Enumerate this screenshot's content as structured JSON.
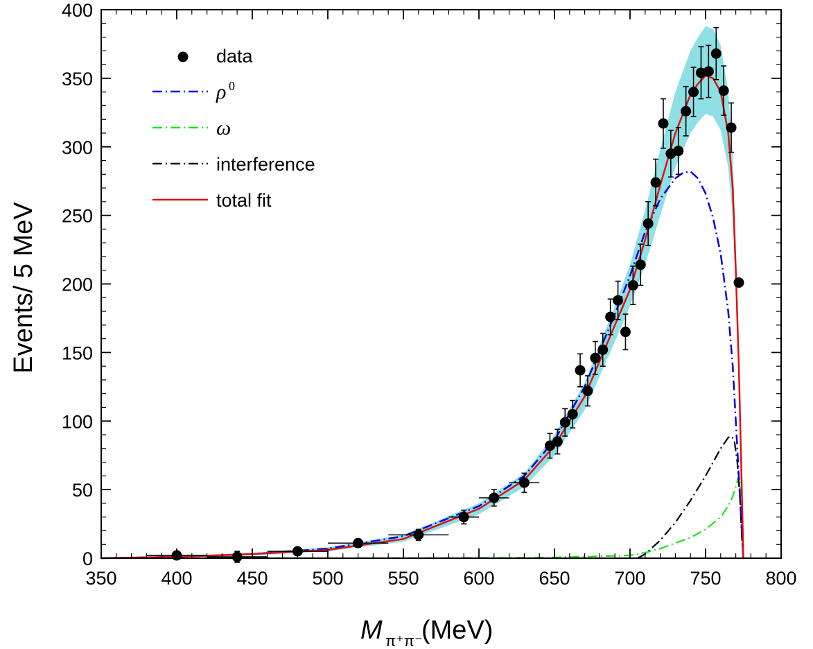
{
  "chart_data": {
    "type": "scatter",
    "xlabel": "M",
    "xlabel_sub": "π⁺π⁻",
    "xlabel_unit": "(MeV)",
    "ylabel": "Events/ 5 MeV",
    "xlim": [
      350,
      800
    ],
    "ylim": [
      0,
      400
    ],
    "xticks": [
      350,
      400,
      450,
      500,
      550,
      600,
      650,
      700,
      750,
      800
    ],
    "yticks": [
      0,
      50,
      100,
      150,
      200,
      250,
      300,
      350,
      400
    ],
    "grid": false,
    "legend_position": "top-left",
    "legend": [
      {
        "key": "data",
        "label": "data",
        "marker": "dot"
      },
      {
        "key": "rho",
        "label": "ρ",
        "sup": "0",
        "style": "dash-dot",
        "color": "#0000e6"
      },
      {
        "key": "omega",
        "label": "ω",
        "style": "dash-dot",
        "color": "#22e022"
      },
      {
        "key": "interference",
        "label": "interference",
        "style": "dash-dot",
        "color": "#000000"
      },
      {
        "key": "total",
        "label": "total fit",
        "style": "solid",
        "color": "#e01010"
      }
    ],
    "band_color": "#8fe0e4",
    "data_points": [
      {
        "x": 400,
        "y": 2,
        "xerr": 20,
        "yerr": 1.5
      },
      {
        "x": 440,
        "y": 1,
        "xerr": 20,
        "yerr": 4
      },
      {
        "x": 480,
        "y": 5,
        "xerr": 20,
        "yerr": 2
      },
      {
        "x": 520,
        "y": 11,
        "xerr": 20,
        "yerr": 3
      },
      {
        "x": 560,
        "y": 17,
        "xerr": 20,
        "yerr": 4
      },
      {
        "x": 590,
        "y": 30,
        "xerr": 10,
        "yerr": 5
      },
      {
        "x": 610,
        "y": 44,
        "xerr": 10,
        "yerr": 6
      },
      {
        "x": 630,
        "y": 55,
        "xerr": 10,
        "yerr": 7
      },
      {
        "x": 647,
        "y": 82,
        "xerr": 2.5,
        "yerr": 9
      },
      {
        "x": 652,
        "y": 85,
        "xerr": 2.5,
        "yerr": 9
      },
      {
        "x": 657,
        "y": 99,
        "xerr": 2.5,
        "yerr": 10
      },
      {
        "x": 662,
        "y": 105,
        "xerr": 2.5,
        "yerr": 10
      },
      {
        "x": 667,
        "y": 137,
        "xerr": 2.5,
        "yerr": 12
      },
      {
        "x": 672,
        "y": 122,
        "xerr": 2.5,
        "yerr": 11
      },
      {
        "x": 677,
        "y": 146,
        "xerr": 2.5,
        "yerr": 12
      },
      {
        "x": 682,
        "y": 152,
        "xerr": 2.5,
        "yerr": 12
      },
      {
        "x": 687,
        "y": 176,
        "xerr": 2.5,
        "yerr": 13
      },
      {
        "x": 692,
        "y": 188,
        "xerr": 2.5,
        "yerr": 14
      },
      {
        "x": 697,
        "y": 165,
        "xerr": 2.5,
        "yerr": 13
      },
      {
        "x": 702,
        "y": 199,
        "xerr": 2.5,
        "yerr": 14
      },
      {
        "x": 707,
        "y": 214,
        "xerr": 2.5,
        "yerr": 15
      },
      {
        "x": 712,
        "y": 244,
        "xerr": 2.5,
        "yerr": 16
      },
      {
        "x": 717,
        "y": 274,
        "xerr": 2.5,
        "yerr": 17
      },
      {
        "x": 722,
        "y": 317,
        "xerr": 2.5,
        "yerr": 18
      },
      {
        "x": 727,
        "y": 295,
        "xerr": 2.5,
        "yerr": 17
      },
      {
        "x": 732,
        "y": 297,
        "xerr": 2.5,
        "yerr": 17
      },
      {
        "x": 737,
        "y": 326,
        "xerr": 2.5,
        "yerr": 18
      },
      {
        "x": 742,
        "y": 340,
        "xerr": 2.5,
        "yerr": 18
      },
      {
        "x": 747,
        "y": 354,
        "xerr": 2.5,
        "yerr": 19
      },
      {
        "x": 752,
        "y": 355,
        "xerr": 2.5,
        "yerr": 19
      },
      {
        "x": 757,
        "y": 368,
        "xerr": 2.5,
        "yerr": 19
      },
      {
        "x": 762,
        "y": 341,
        "xerr": 2.5,
        "yerr": 18
      },
      {
        "x": 767,
        "y": 314,
        "xerr": 2.5,
        "yerr": 18
      },
      {
        "x": 772,
        "y": 201,
        "xerr": 0,
        "yerr": 0
      }
    ],
    "total_fit": {
      "x": [
        350,
        400,
        450,
        500,
        550,
        600,
        630,
        650,
        670,
        690,
        700,
        710,
        720,
        730,
        740,
        745,
        750,
        755,
        760,
        765,
        768,
        770,
        772,
        774,
        775
      ],
      "y": [
        0,
        1,
        3,
        6,
        14,
        36,
        57,
        82,
        118,
        170,
        196,
        232,
        272,
        310,
        338,
        346,
        352,
        350,
        340,
        310,
        270,
        210,
        140,
        50,
        0
      ]
    },
    "band": {
      "x": [
        350,
        400,
        450,
        500,
        550,
        600,
        630,
        650,
        670,
        690,
        700,
        710,
        720,
        730,
        740,
        745,
        750,
        755,
        760,
        765,
        768,
        770,
        772,
        774,
        775
      ],
      "lower": [
        0,
        0.5,
        2,
        5,
        12,
        32,
        52,
        75,
        108,
        158,
        184,
        214,
        250,
        285,
        310,
        318,
        324,
        322,
        312,
        285,
        248,
        195,
        130,
        45,
        0
      ],
      "upper": [
        0,
        1.5,
        4,
        8,
        17,
        40,
        62,
        90,
        128,
        184,
        214,
        254,
        298,
        340,
        370,
        380,
        388,
        386,
        374,
        340,
        294,
        228,
        152,
        56,
        0
      ]
    },
    "rho": {
      "x": [
        350,
        400,
        450,
        500,
        550,
        600,
        630,
        650,
        670,
        690,
        700,
        710,
        720,
        730,
        735,
        740,
        745,
        750,
        755,
        760,
        765,
        768,
        770,
        772,
        774,
        775
      ],
      "y": [
        0,
        1,
        3,
        7,
        16,
        38,
        60,
        86,
        125,
        178,
        206,
        238,
        262,
        277,
        281,
        282,
        277,
        266,
        248,
        222,
        180,
        140,
        100,
        60,
        20,
        0
      ]
    },
    "omega": {
      "x": [
        350,
        500,
        600,
        650,
        700,
        710,
        720,
        730,
        740,
        750,
        760,
        765,
        768,
        770,
        772,
        773,
        774,
        775
      ],
      "y": [
        0,
        0,
        0.2,
        0.5,
        2,
        4,
        7,
        11,
        15,
        21,
        30,
        38,
        45,
        52,
        60,
        56,
        30,
        0
      ]
    },
    "interference": {
      "x": [
        705,
        710,
        720,
        730,
        740,
        750,
        755,
        760,
        765,
        767,
        769,
        771,
        773,
        774,
        775
      ],
      "y": [
        0,
        3,
        13,
        26,
        42,
        60,
        70,
        80,
        88,
        89,
        86,
        70,
        40,
        15,
        0
      ]
    }
  }
}
